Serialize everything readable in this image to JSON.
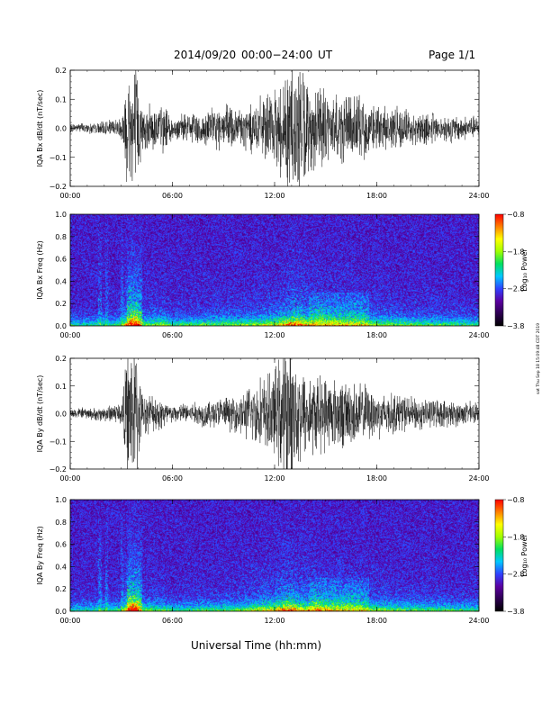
{
  "header": {
    "title": "2014/09/20  00:00−24:00 UT",
    "page": "Page 1/1"
  },
  "footer": {
    "xlabel": "Universal Time (hh:mm)",
    "stamp": "sat Thu Sep 18 15:09:48 CDT 2019"
  },
  "colorbar": {
    "label": "Log₁₀ Power",
    "ticks": [
      "−0.8",
      "−1.8",
      "−2.8",
      "−3.8"
    ],
    "range": [
      -3.8,
      -0.8
    ],
    "colors": [
      "#000000",
      "#2c0050",
      "#5a00a0",
      "#3040ff",
      "#00c8ff",
      "#00e060",
      "#a0ff00",
      "#ffff00",
      "#ff8000",
      "#ff0000"
    ]
  },
  "chart_data": [
    {
      "type": "line",
      "ylabel": "IQA Bx dB/dt (nT/sec)",
      "x_ticks": [
        "00:00",
        "06:00",
        "12:00",
        "18:00",
        "24:00"
      ],
      "xlim": [
        0,
        24
      ],
      "ylim": [
        -0.2,
        0.2
      ],
      "y_ticks": [
        "−0.2",
        "−0.1",
        "0.0",
        "0.1",
        "0.2"
      ],
      "series_color": "#000000",
      "envelope_x_hours": [
        0,
        1,
        2,
        3,
        3.4,
        3.6,
        3.9,
        4.2,
        5.5,
        6,
        9.5,
        10,
        11,
        12,
        12.5,
        13,
        13.5,
        14,
        15,
        16,
        17,
        18,
        20,
        22,
        24
      ],
      "envelope_amplitude": [
        0.012,
        0.014,
        0.02,
        0.03,
        0.2,
        0.2,
        0.2,
        0.06,
        0.07,
        0.03,
        0.07,
        0.06,
        0.08,
        0.1,
        0.15,
        0.2,
        0.2,
        0.12,
        0.11,
        0.1,
        0.09,
        0.07,
        0.05,
        0.04,
        0.03
      ]
    },
    {
      "type": "heatmap",
      "ylabel": "IQA Bx Freq (Hz)",
      "x_ticks": [
        "00:00",
        "06:00",
        "12:00",
        "18:00",
        "24:00"
      ],
      "xlim": [
        0,
        24
      ],
      "ylim": [
        0.0,
        1.0
      ],
      "y_ticks": [
        "0.0",
        "0.2",
        "0.4",
        "0.6",
        "0.8",
        "1.0"
      ]
    },
    {
      "type": "line",
      "ylabel": "IQA By dB/dt (nT/sec)",
      "x_ticks": [
        "00:00",
        "06:00",
        "12:00",
        "18:00",
        "24:00"
      ],
      "xlim": [
        0,
        24
      ],
      "ylim": [
        -0.2,
        0.2
      ],
      "y_ticks": [
        "−0.2",
        "−0.1",
        "0.0",
        "0.1",
        "0.2"
      ],
      "series_color": "#000000",
      "envelope_x_hours": [
        0,
        1,
        2,
        3,
        3.4,
        3.6,
        3.9,
        4.2,
        5.5,
        6,
        9.5,
        10,
        11,
        12,
        12.5,
        13,
        13.5,
        14,
        15,
        16,
        17,
        18,
        20,
        22,
        24
      ],
      "envelope_amplitude": [
        0.015,
        0.016,
        0.022,
        0.035,
        0.2,
        0.2,
        0.2,
        0.06,
        0.05,
        0.025,
        0.05,
        0.06,
        0.1,
        0.13,
        0.2,
        0.2,
        0.15,
        0.12,
        0.11,
        0.1,
        0.09,
        0.07,
        0.05,
        0.04,
        0.03
      ]
    },
    {
      "type": "heatmap",
      "ylabel": "IQA By Freq (Hz)",
      "x_ticks": [
        "00:00",
        "06:00",
        "12:00",
        "18:00",
        "24:00"
      ],
      "xlim": [
        0,
        24
      ],
      "ylim": [
        0.0,
        1.0
      ],
      "y_ticks": [
        "0.0",
        "0.2",
        "0.4",
        "0.6",
        "0.8",
        "1.0"
      ]
    }
  ]
}
